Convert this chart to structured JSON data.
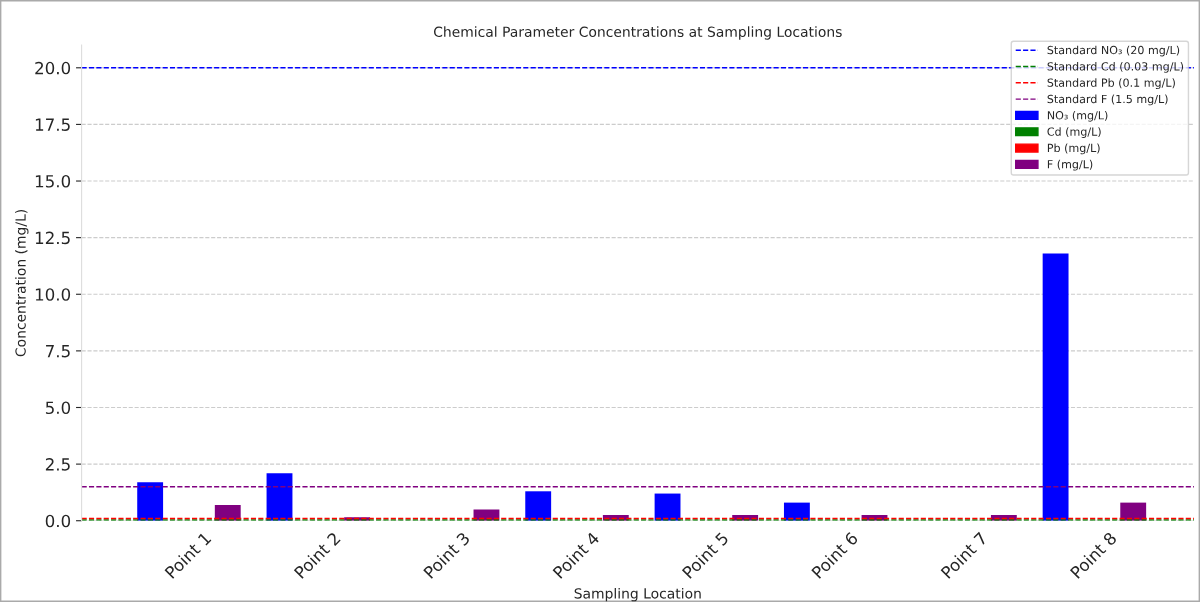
{
  "chart_data": {
    "type": "bar",
    "title": "Chemical Parameter Concentrations at Sampling Locations",
    "xlabel": "Sampling Location",
    "ylabel": "Concentration (mg/L)",
    "categories": [
      "Point 1",
      "Point 2",
      "Point 3",
      "Point 4",
      "Point 5",
      "Point 6",
      "Point 7",
      "Point 8"
    ],
    "series": [
      {
        "name": "NO₃ (mg/L)",
        "color": "#0000ff",
        "values": [
          1.7,
          2.1,
          null,
          1.3,
          1.2,
          0.8,
          null,
          11.8
        ]
      },
      {
        "name": "Cd (mg/L)",
        "color": "#008000",
        "values": [
          null,
          null,
          null,
          null,
          null,
          null,
          null,
          null
        ]
      },
      {
        "name": "Pb (mg/L)",
        "color": "#ff0000",
        "values": [
          null,
          null,
          null,
          null,
          null,
          null,
          null,
          null
        ]
      },
      {
        "name": "F (mg/L)",
        "color": "#800080",
        "values": [
          0.7,
          0.15,
          0.5,
          0.25,
          0.25,
          0.25,
          0.25,
          0.8
        ]
      }
    ],
    "ref_lines": [
      {
        "axis": "y",
        "value": 20,
        "label": "Standard NO₃ (20 mg/L)",
        "color": "#0000ff",
        "line_style": "dashed"
      },
      {
        "axis": "y",
        "value": 0.03,
        "label": "Standard Cd (0.03 mg/L)",
        "color": "#008000",
        "line_style": "dashed"
      },
      {
        "axis": "y",
        "value": 0.1,
        "label": "Standard Pb (0.1 mg/L)",
        "color": "#ff0000",
        "line_style": "dashed"
      },
      {
        "axis": "y",
        "value": 1.5,
        "label": "Standard F (1.5 mg/L)",
        "color": "#800080",
        "line_style": "dashed"
      }
    ],
    "ylim": [
      0,
      21
    ],
    "yticks": [
      {
        "value": 0,
        "label": "0.0"
      },
      2.5,
      {
        "value": 5,
        "label": "5.0"
      },
      7.5,
      {
        "value": 10,
        "label": "10.0"
      },
      12.5,
      {
        "value": 15,
        "label": "15.0"
      },
      17.5,
      {
        "value": 20,
        "label": "20.0"
      }
    ],
    "grid": "y",
    "legend": "top right"
  }
}
